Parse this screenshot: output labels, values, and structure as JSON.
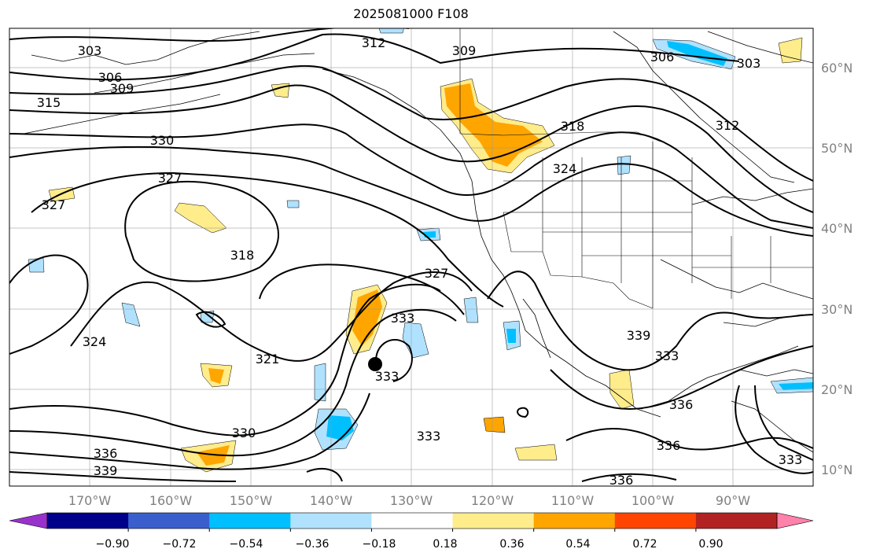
{
  "title": "2025081000 F108",
  "lat_labels": [
    "60°N",
    "50°N",
    "40°N",
    "30°N",
    "20°N",
    "10°N"
  ],
  "lon_labels": [
    "170°W",
    "160°W",
    "150°W",
    "140°W",
    "130°W",
    "120°W",
    "110°W",
    "100°W",
    "90°W"
  ],
  "colorbar": {
    "ticks": [
      "−0.90",
      "−0.72",
      "−0.54",
      "−0.36",
      "−0.18",
      "0.18",
      "0.36",
      "0.54",
      "0.72",
      "0.90"
    ],
    "colors": [
      "#9932cc",
      "#00008b",
      "#3a5fcd",
      "#00bfff",
      "#b0e2ff",
      "#ffffff",
      "#ffec8b",
      "#ffa500",
      "#ff4500",
      "#b22222",
      "#ff82ab"
    ]
  },
  "contour_labels": [
    "303",
    "306",
    "309",
    "312",
    "315",
    "318",
    "321",
    "324",
    "327",
    "330",
    "333",
    "336",
    "339"
  ],
  "marker": "storm-center-dot"
}
